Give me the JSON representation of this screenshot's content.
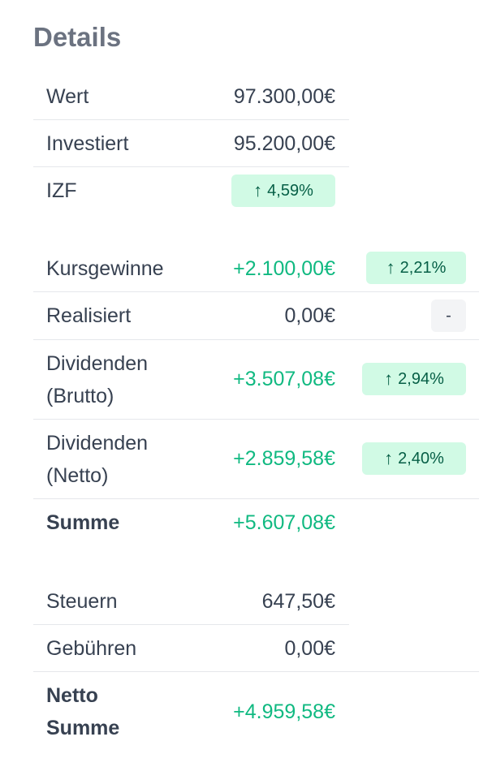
{
  "header": {
    "title": "Details"
  },
  "summary": [
    {
      "label": "Wert",
      "value": "97.300,00€"
    },
    {
      "label": "Investiert",
      "value": "95.200,00€"
    },
    {
      "label": "IZF",
      "badge": "4,59%",
      "arrow": "↑"
    }
  ],
  "gains": [
    {
      "label": "Kursgewinne",
      "value": "+2.100,00€",
      "badge": "2,21%",
      "arrow": "↑"
    },
    {
      "label": "Realisiert",
      "value": "0,00€",
      "badge": "-"
    },
    {
      "label_line1": "Dividenden",
      "label_line2": "(Brutto)",
      "value": "+3.507,08€",
      "badge": "2,94%",
      "arrow": "↑"
    },
    {
      "label_line1": "Dividenden",
      "label_line2": "(Netto)",
      "value": "+2.859,58€",
      "badge": "2,40%",
      "arrow": "↑"
    },
    {
      "label": "Summe",
      "value": "+5.607,08€"
    }
  ],
  "costs": [
    {
      "label": "Steuern",
      "value": "647,50€"
    },
    {
      "label": "Gebühren",
      "value": "0,00€"
    },
    {
      "label_line1": "Netto",
      "label_line2": "Summe",
      "value": "+4.959,58€"
    }
  ]
}
